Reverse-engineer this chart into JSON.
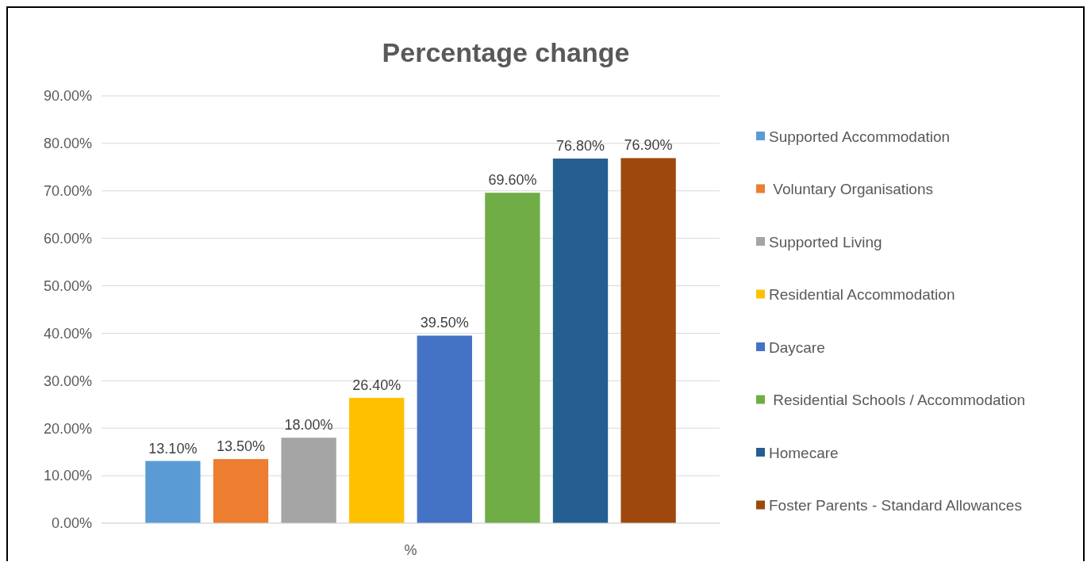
{
  "chart_data": {
    "type": "bar",
    "title": "Percentage change",
    "categories": [
      "%"
    ],
    "series": [
      {
        "name": "Supported Accommodation",
        "color": "#5b9bd5",
        "values": [
          13.1
        ],
        "value_labels": [
          "13.10%"
        ]
      },
      {
        "name": " Voluntary Organisations",
        "color": "#ed7d31",
        "values": [
          13.5
        ],
        "value_labels": [
          "13.50%"
        ]
      },
      {
        "name": "Supported Living",
        "color": "#a5a5a5",
        "values": [
          18.0
        ],
        "value_labels": [
          "18.00%"
        ]
      },
      {
        "name": "Residential Accommodation",
        "color": "#ffc000",
        "values": [
          26.4
        ],
        "value_labels": [
          "26.40%"
        ]
      },
      {
        "name": "Daycare",
        "color": "#4472c4",
        "values": [
          39.5
        ],
        "value_labels": [
          "39.50%"
        ]
      },
      {
        "name": " Residential Schools / Accommodation",
        "color": "#70ad47",
        "values": [
          69.6
        ],
        "value_labels": [
          "69.60%"
        ]
      },
      {
        "name": "Homecare",
        "color": "#255e91",
        "values": [
          76.8
        ],
        "value_labels": [
          "76.80%"
        ]
      },
      {
        "name": "Foster Parents - Standard Allowances",
        "color": "#9e480e",
        "values": [
          76.9
        ],
        "value_labels": [
          "76.90%"
        ]
      }
    ],
    "ylim": [
      0,
      90
    ],
    "yticks": [
      {
        "value": 0,
        "label": "0.00%"
      },
      {
        "value": 10,
        "label": "10.00%"
      },
      {
        "value": 20,
        "label": "20.00%"
      },
      {
        "value": 30,
        "label": "30.00%"
      },
      {
        "value": 40,
        "label": "40.00%"
      },
      {
        "value": 50,
        "label": "50.00%"
      },
      {
        "value": 60,
        "label": "60.00%"
      },
      {
        "value": 70,
        "label": "70.00%"
      },
      {
        "value": 80,
        "label": "80.00%"
      },
      {
        "value": 90,
        "label": "90.00%"
      }
    ],
    "grid": "y",
    "legend": "right"
  }
}
